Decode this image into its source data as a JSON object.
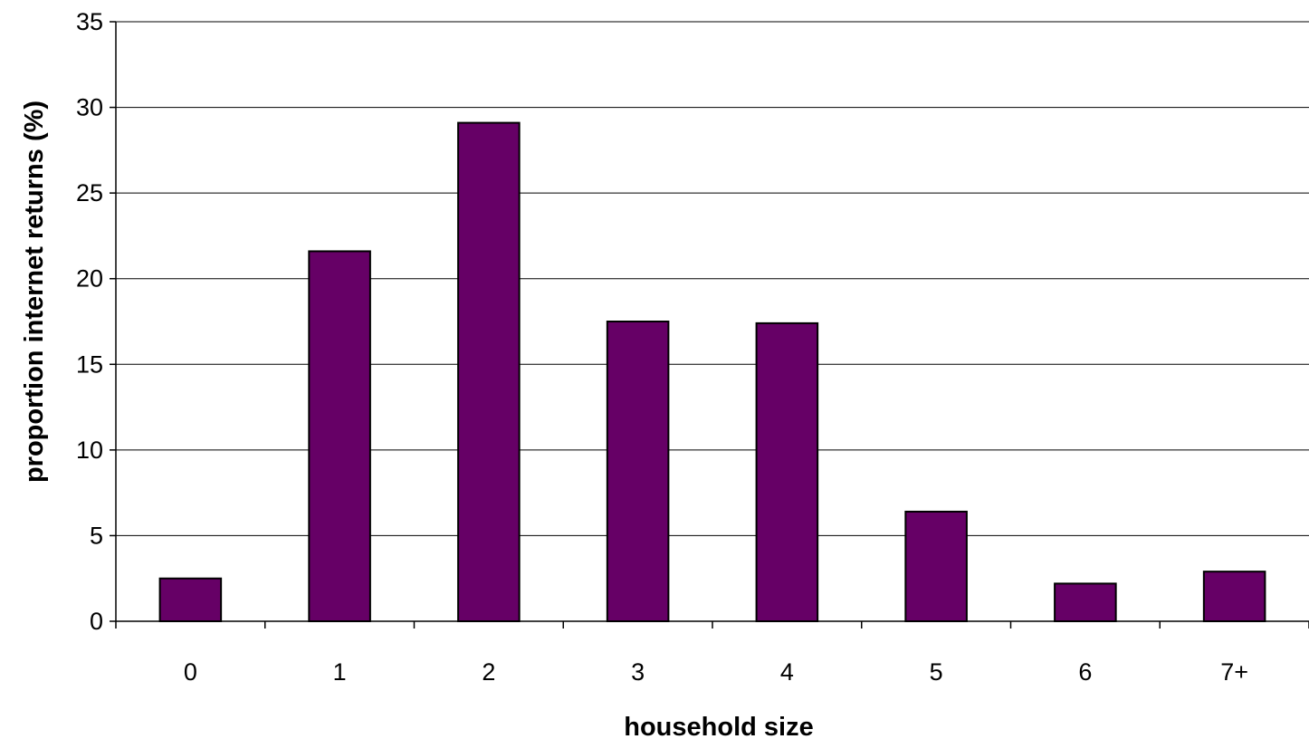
{
  "chart_data": {
    "type": "bar",
    "categories": [
      "0",
      "1",
      "2",
      "3",
      "4",
      "5",
      "6",
      "7+"
    ],
    "values": [
      2.5,
      21.6,
      29.1,
      17.5,
      17.4,
      6.4,
      2.2,
      2.9
    ],
    "xlabel": "household size",
    "ylabel": "proportion internet returns (%)",
    "ylim": [
      0,
      35
    ],
    "yticks": [
      "0",
      "5",
      "10",
      "15",
      "20",
      "25",
      "30",
      "35"
    ],
    "grid": true,
    "legend": "none",
    "colors": {
      "bar_fill": "#660066",
      "bar_stroke": "#000000",
      "grid": "#000000",
      "background": "#ffffff"
    }
  }
}
